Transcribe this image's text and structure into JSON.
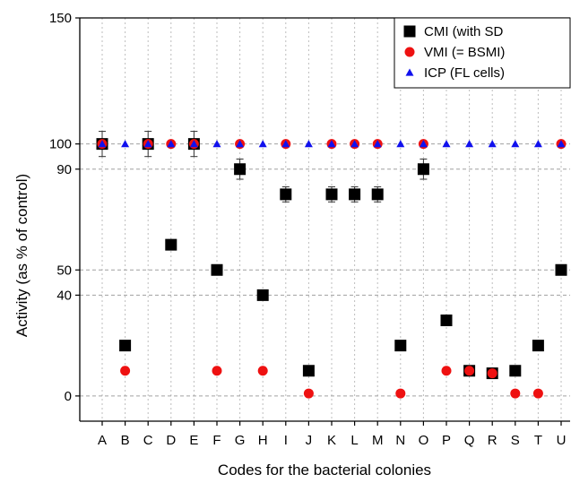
{
  "chart_data": {
    "type": "scatter",
    "xlabel": "Codes for the bacterial colonies",
    "ylabel": "Activity (as % of control)",
    "categories": [
      "A",
      "B",
      "C",
      "D",
      "E",
      "F",
      "G",
      "H",
      "I",
      "J",
      "K",
      "L",
      "M",
      "N",
      "O",
      "P",
      "Q",
      "R",
      "S",
      "T",
      "U"
    ],
    "ylim": [
      -10,
      150
    ],
    "yticks": [
      0,
      40,
      50,
      90,
      100,
      150
    ],
    "grid": {
      "x": true,
      "y_dashed_at": [
        0,
        40,
        50,
        90,
        100
      ]
    },
    "legend_placement": "top-right",
    "series": [
      {
        "name": "CMI (with SD",
        "marker": "square",
        "color": "#000000",
        "values": [
          100,
          20,
          100,
          60,
          100,
          50,
          90,
          40,
          80,
          10,
          80,
          80,
          80,
          20,
          90,
          30,
          10,
          9,
          10,
          20,
          50
        ],
        "errors": [
          5,
          0,
          5,
          2,
          5,
          2,
          4,
          0,
          3,
          0,
          3,
          3,
          3,
          0,
          4,
          0,
          0,
          0,
          0,
          0,
          2
        ]
      },
      {
        "name": "VMI (= BSMI)",
        "marker": "circle",
        "color": "#ee1111",
        "values": [
          100,
          10,
          100,
          100,
          100,
          10,
          100,
          10,
          100,
          1,
          100,
          100,
          100,
          1,
          100,
          10,
          10,
          9,
          1,
          1,
          100
        ]
      },
      {
        "name": "ICP (FL cells)",
        "marker": "triangle",
        "color": "#1111ee",
        "values": [
          100,
          100,
          100,
          100,
          100,
          100,
          100,
          100,
          100,
          100,
          100,
          100,
          100,
          100,
          100,
          100,
          100,
          100,
          100,
          100,
          100
        ]
      }
    ]
  }
}
